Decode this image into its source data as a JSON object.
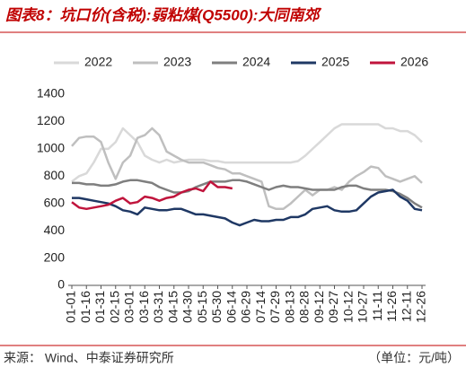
{
  "chart_data": {
    "type": "line",
    "title": "图表8：坑口价(含税):弱粘煤(Q5500):大同南郊",
    "source": "来源：  Wind、中泰证券研究所",
    "unit": "（单位：元/吨）",
    "categories": [
      "01-01",
      null,
      "01-16",
      null,
      "01-31",
      null,
      "02-15",
      null,
      "03-01",
      null,
      "03-16",
      null,
      "03-31",
      null,
      "04-15",
      null,
      "04-30",
      null,
      "05-15",
      null,
      "05-30",
      null,
      "06-14",
      null,
      "06-29",
      null,
      "07-14",
      null,
      "07-29",
      null,
      "08-13",
      null,
      "08-28",
      null,
      "09-12",
      null,
      "09-27",
      null,
      "10-12",
      null,
      "10-27",
      null,
      "11-11",
      null,
      "11-26",
      null,
      "12-11",
      null,
      "12-26"
    ],
    "series": [
      {
        "name": "2022",
        "color": "#d9d9d9",
        "values": [
          760,
          800,
          820,
          900,
          1000,
          1000,
          1050,
          1150,
          1100,
          1050,
          950,
          920,
          900,
          920,
          900,
          910,
          920,
          920,
          920,
          910,
          910,
          900,
          900,
          900,
          900,
          900,
          900,
          900,
          900,
          900,
          900,
          910,
          950,
          1000,
          1050,
          1100,
          1150,
          1180,
          1180,
          1180,
          1180,
          1180,
          1180,
          1150,
          1150,
          1130,
          1130,
          1100,
          1050
        ]
      },
      {
        "name": "2023",
        "color": "#bfbfbf",
        "values": [
          1020,
          1080,
          1090,
          1090,
          1050,
          900,
          780,
          900,
          950,
          1080,
          1100,
          1150,
          1100,
          980,
          950,
          920,
          900,
          900,
          900,
          880,
          860,
          850,
          820,
          820,
          800,
          780,
          760,
          580,
          560,
          560,
          600,
          650,
          700,
          660,
          700,
          700,
          720,
          700,
          760,
          800,
          830,
          870,
          860,
          800,
          780,
          760,
          780,
          800,
          750
        ]
      },
      {
        "name": "2024",
        "color": "#7f7f7f",
        "values": [
          750,
          750,
          740,
          740,
          730,
          730,
          740,
          760,
          770,
          770,
          760,
          750,
          720,
          700,
          680,
          680,
          690,
          720,
          740,
          760,
          760,
          760,
          770,
          770,
          760,
          740,
          720,
          700,
          720,
          730,
          720,
          720,
          710,
          700,
          700,
          700,
          700,
          720,
          730,
          730,
          710,
          700,
          700,
          700,
          690,
          670,
          640,
          600,
          570
        ]
      },
      {
        "name": "2025",
        "color": "#1f3864",
        "values": [
          640,
          640,
          630,
          620,
          610,
          600,
          580,
          550,
          540,
          520,
          570,
          560,
          550,
          550,
          560,
          560,
          540,
          520,
          520,
          510,
          500,
          490,
          460,
          440,
          460,
          480,
          470,
          470,
          480,
          480,
          500,
          500,
          520,
          560,
          570,
          580,
          550,
          540,
          540,
          550,
          600,
          650,
          680,
          690,
          700,
          650,
          620,
          560,
          550
        ]
      },
      {
        "name": "2026",
        "color": "#c0143c",
        "values": [
          610,
          570,
          560,
          570,
          580,
          590,
          620,
          640,
          600,
          610,
          650,
          640,
          620,
          640,
          650,
          680,
          700,
          710,
          690,
          760,
          720,
          720,
          710,
          null,
          null,
          null,
          null,
          null,
          null,
          null,
          null,
          null,
          null,
          null,
          null,
          null,
          null,
          null,
          null,
          null,
          null,
          null,
          null,
          null,
          null,
          null,
          null,
          null,
          null
        ]
      }
    ],
    "ylim": [
      0,
      1400
    ],
    "yticks": [
      0,
      200,
      400,
      600,
      800,
      1000,
      1200,
      1400
    ]
  }
}
